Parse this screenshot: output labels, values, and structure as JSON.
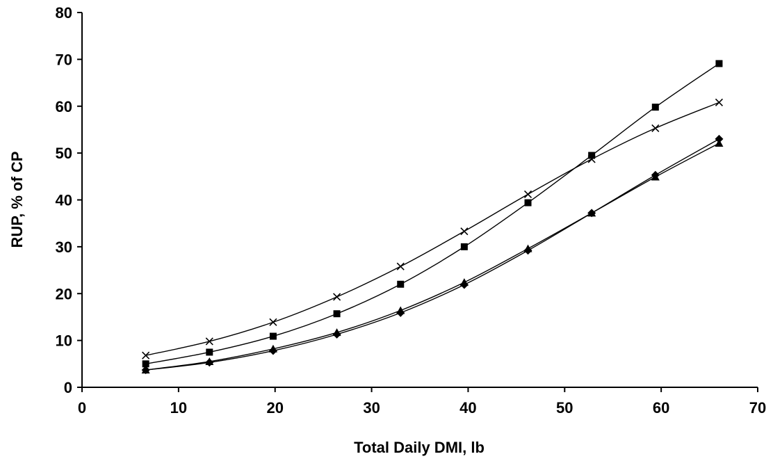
{
  "chart_data": {
    "type": "line",
    "title": "",
    "xlabel": "Total Daily DMI, lb",
    "ylabel": "RUP, % of CP",
    "xlim": [
      0,
      70
    ],
    "ylim": [
      0,
      80
    ],
    "xticks": [
      0,
      10,
      20,
      30,
      40,
      50,
      60,
      70
    ],
    "yticks": [
      0,
      10,
      20,
      30,
      40,
      50,
      60,
      70,
      80
    ],
    "grid": false,
    "legend": "none",
    "x": [
      6.6,
      13.2,
      19.8,
      26.4,
      33.0,
      39.6,
      46.2,
      52.8,
      59.4,
      66.0
    ],
    "series": [
      {
        "marker": "square",
        "color": "#000000",
        "values": [
          5.0,
          7.5,
          10.9,
          15.7,
          22.0,
          30.0,
          39.4,
          49.5,
          59.8,
          69.1
        ]
      },
      {
        "marker": "x",
        "color": "#000000",
        "values": [
          6.8,
          9.8,
          13.9,
          19.3,
          25.8,
          33.3,
          41.2,
          48.7,
          55.3,
          60.8
        ]
      },
      {
        "marker": "diamond",
        "color": "#000000",
        "values": [
          3.7,
          5.3,
          7.8,
          11.3,
          15.9,
          21.9,
          29.2,
          37.2,
          45.3,
          53.0
        ]
      },
      {
        "marker": "triangle",
        "color": "#000000",
        "values": [
          3.7,
          5.5,
          8.2,
          11.7,
          16.4,
          22.4,
          29.6,
          37.2,
          44.9,
          52.1
        ]
      }
    ]
  }
}
